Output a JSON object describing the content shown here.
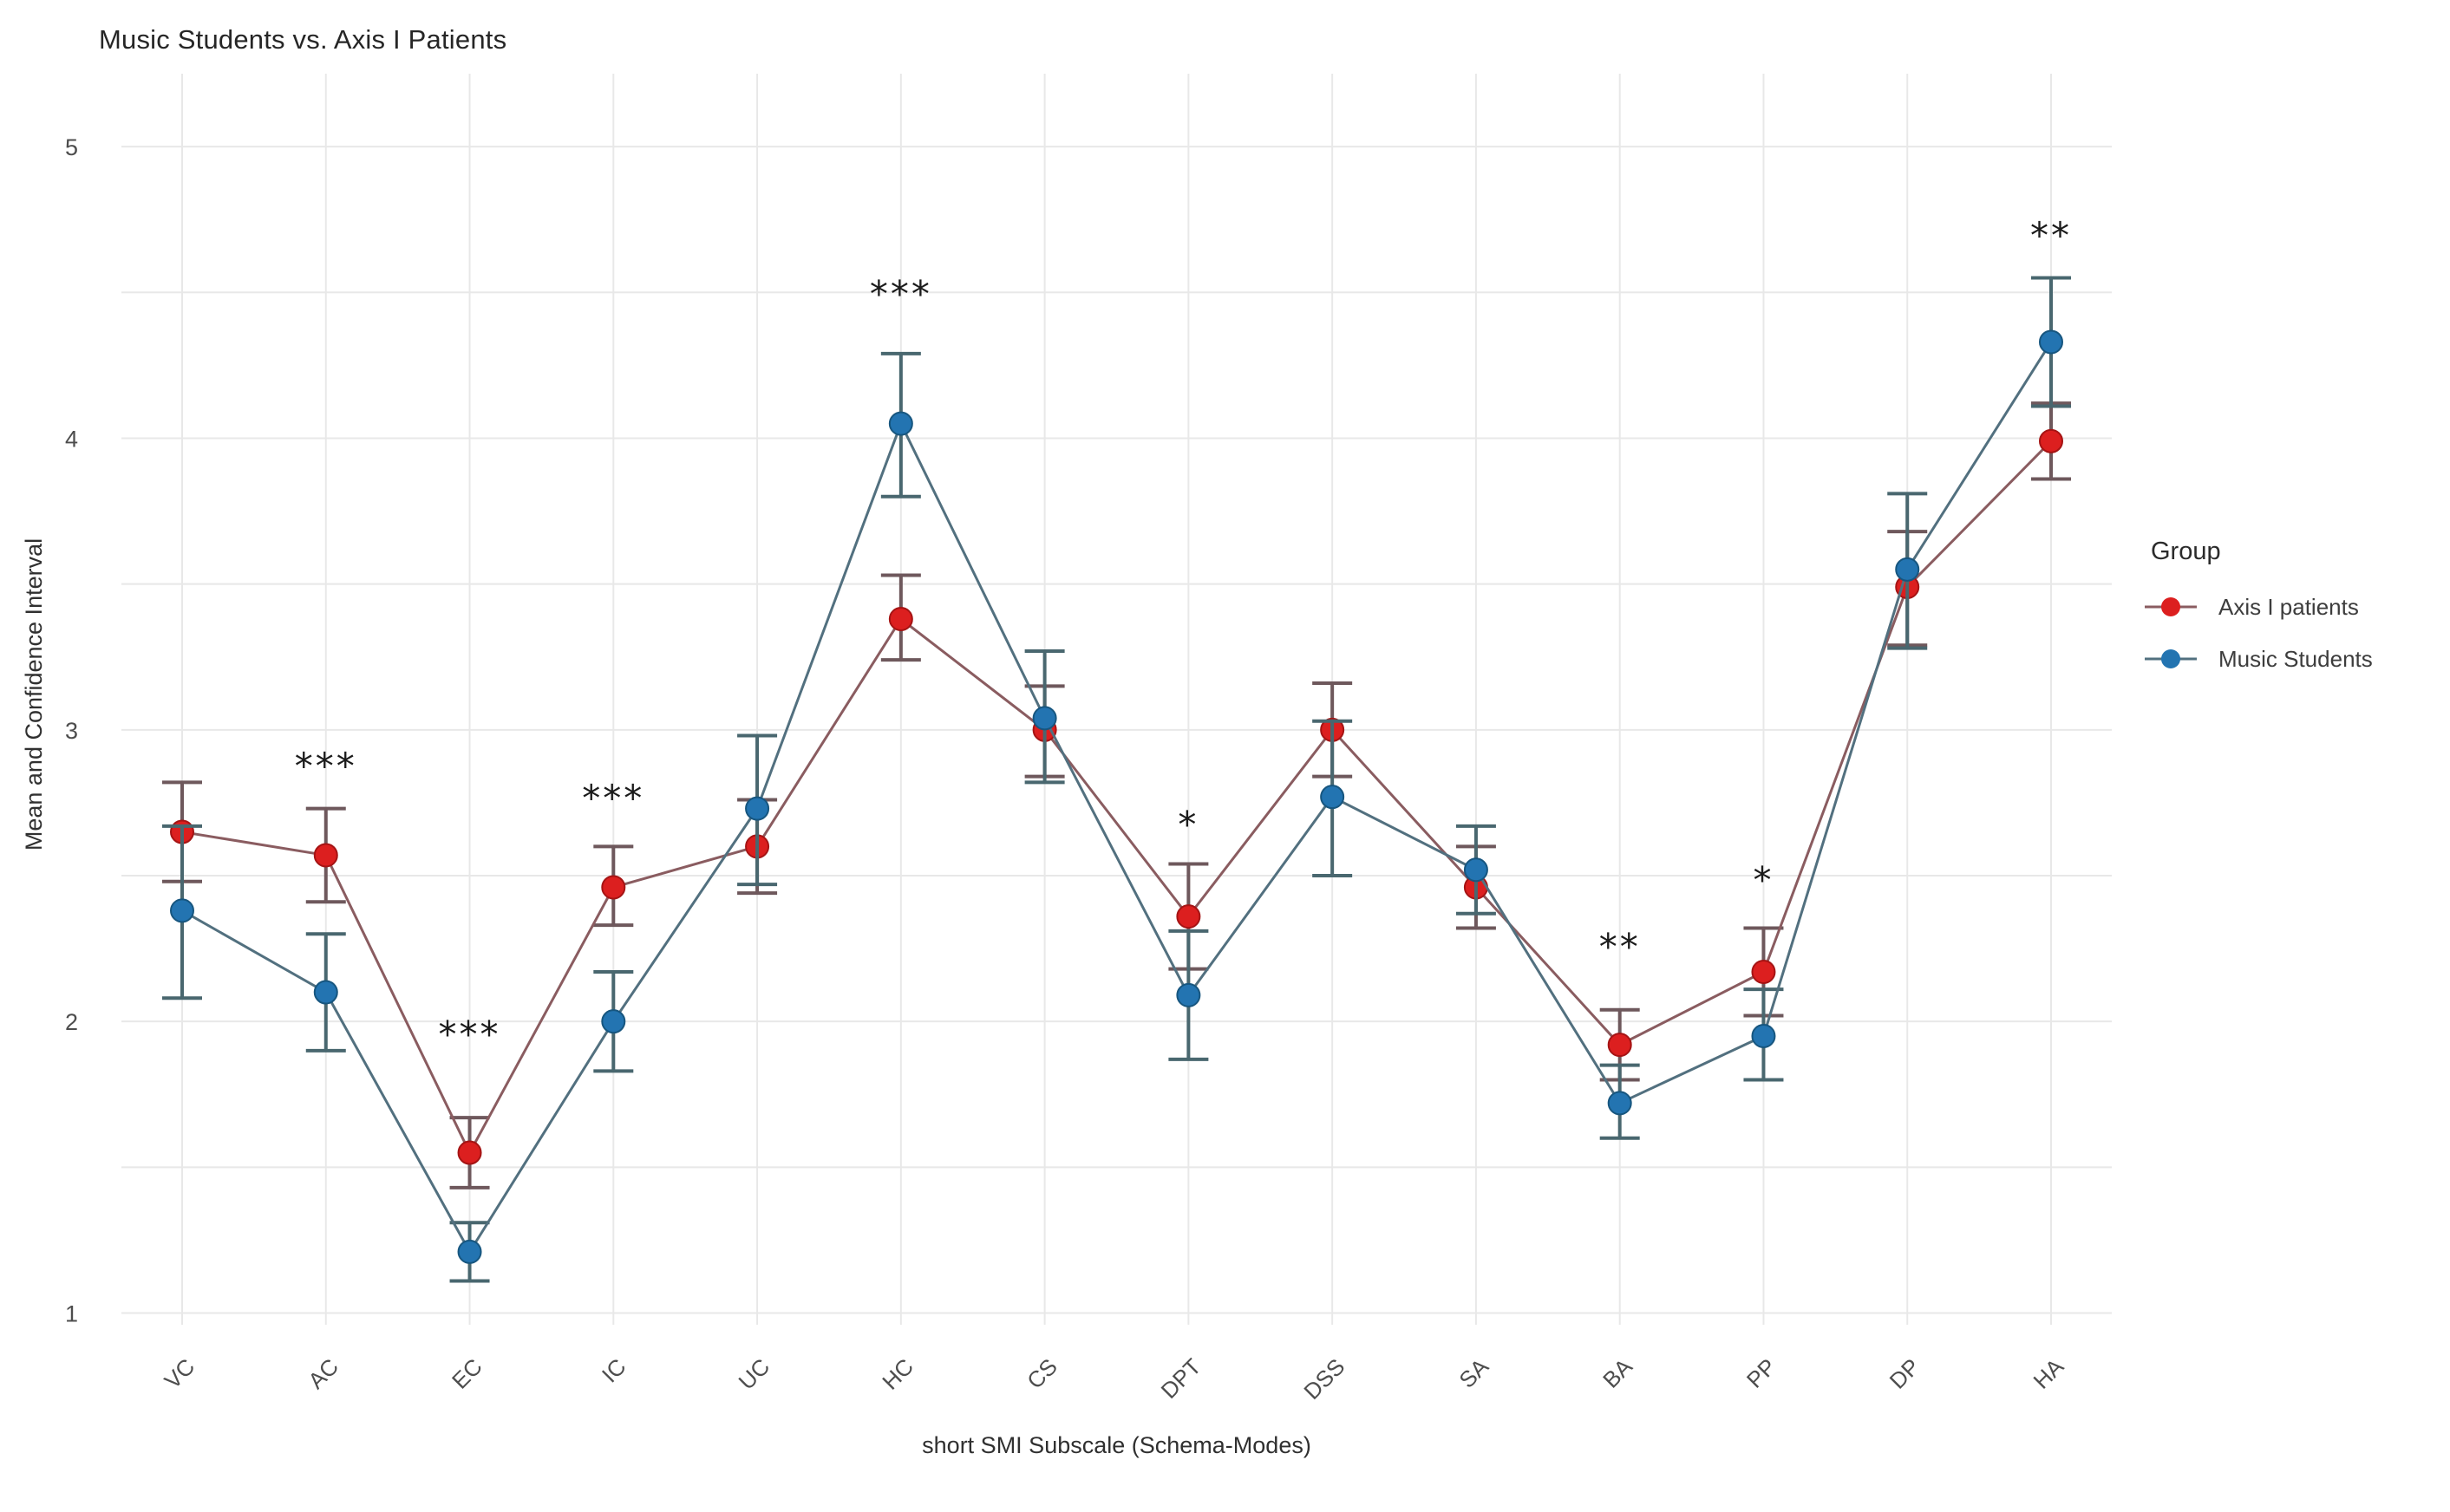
{
  "title": "Music Students vs. Axis I Patients",
  "axes": {
    "y_label": "Mean and Confidence Interval",
    "x_label": "short SMI Subscale (Schema-Modes)"
  },
  "legend": {
    "title": "Group",
    "items": [
      {
        "label": "Axis I patients",
        "color": "#dc1f1f",
        "line_color": "#8a5c60"
      },
      {
        "label": "Music Students",
        "color": "#2374b1",
        "line_color": "#52707f"
      }
    ]
  },
  "chart_data": {
    "type": "line",
    "title": "Music Students vs. Axis I Patients",
    "xlabel": "short SMI Subscale (Schema-Modes)",
    "ylabel": "Mean and Confidence Interval",
    "categories": [
      "VC",
      "AC",
      "EC",
      "IC",
      "UC",
      "HC",
      "CS",
      "DPT",
      "DSS",
      "SA",
      "BA",
      "PP",
      "DP",
      "HA"
    ],
    "y_ticks": [
      1,
      2,
      3,
      4,
      5
    ],
    "ylim": [
      0.96,
      5.25
    ],
    "grid": "horizontal every 0.5 and vertical per category, light gray, no panel border",
    "legend_position": "right",
    "error_bars": "95% confidence interval with caps",
    "series": [
      {
        "name": "Axis I patients",
        "point_color": "#dc1f1f",
        "point_stroke": "#a51414",
        "line_color": "#8a5c60",
        "error_color": "#6e585c",
        "values": [
          2.65,
          2.57,
          1.55,
          2.46,
          2.6,
          3.38,
          3.0,
          2.36,
          3.0,
          2.46,
          1.92,
          2.17,
          3.49,
          3.99
        ],
        "ci_low": [
          2.48,
          2.41,
          1.43,
          2.33,
          2.44,
          3.24,
          2.84,
          2.18,
          2.84,
          2.32,
          1.8,
          2.02,
          3.29,
          3.86
        ],
        "ci_high": [
          2.82,
          2.73,
          1.67,
          2.6,
          2.76,
          3.53,
          3.15,
          2.54,
          3.16,
          2.6,
          2.04,
          2.32,
          3.68,
          4.12
        ]
      },
      {
        "name": "Music Students",
        "point_color": "#2374b1",
        "point_stroke": "#17567f",
        "line_color": "#52707f",
        "error_color": "#49676f",
        "values": [
          2.38,
          2.1,
          1.21,
          2.0,
          2.73,
          4.05,
          3.04,
          2.09,
          2.77,
          2.52,
          1.72,
          1.95,
          3.55,
          4.33
        ],
        "ci_low": [
          2.08,
          1.9,
          1.11,
          1.83,
          2.47,
          3.8,
          2.82,
          1.87,
          2.5,
          2.37,
          1.6,
          1.8,
          3.28,
          4.11
        ],
        "ci_high": [
          2.67,
          2.3,
          1.31,
          2.17,
          2.98,
          4.29,
          3.27,
          2.31,
          3.03,
          2.67,
          1.85,
          2.11,
          3.81,
          4.55
        ]
      }
    ],
    "significance": [
      {
        "category": "AC",
        "label": "***",
        "y": 2.88
      },
      {
        "category": "EC",
        "label": "***",
        "y": 1.96
      },
      {
        "category": "IC",
        "label": "***",
        "y": 2.77
      },
      {
        "category": "HC",
        "label": "***",
        "y": 4.5
      },
      {
        "category": "DPT",
        "label": "*",
        "y": 2.68
      },
      {
        "category": "BA",
        "label": "**",
        "y": 2.26
      },
      {
        "category": "PP",
        "label": "*",
        "y": 2.49
      },
      {
        "category": "HA",
        "label": "**",
        "y": 4.7
      }
    ],
    "colors": {
      "background": "#ffffff",
      "gridline": "#e8e8e8",
      "tick_label": "#4d4d4d",
      "title_text": "#262626",
      "axis_title_text": "#303030",
      "significance_text": "#1b1b1b"
    }
  }
}
